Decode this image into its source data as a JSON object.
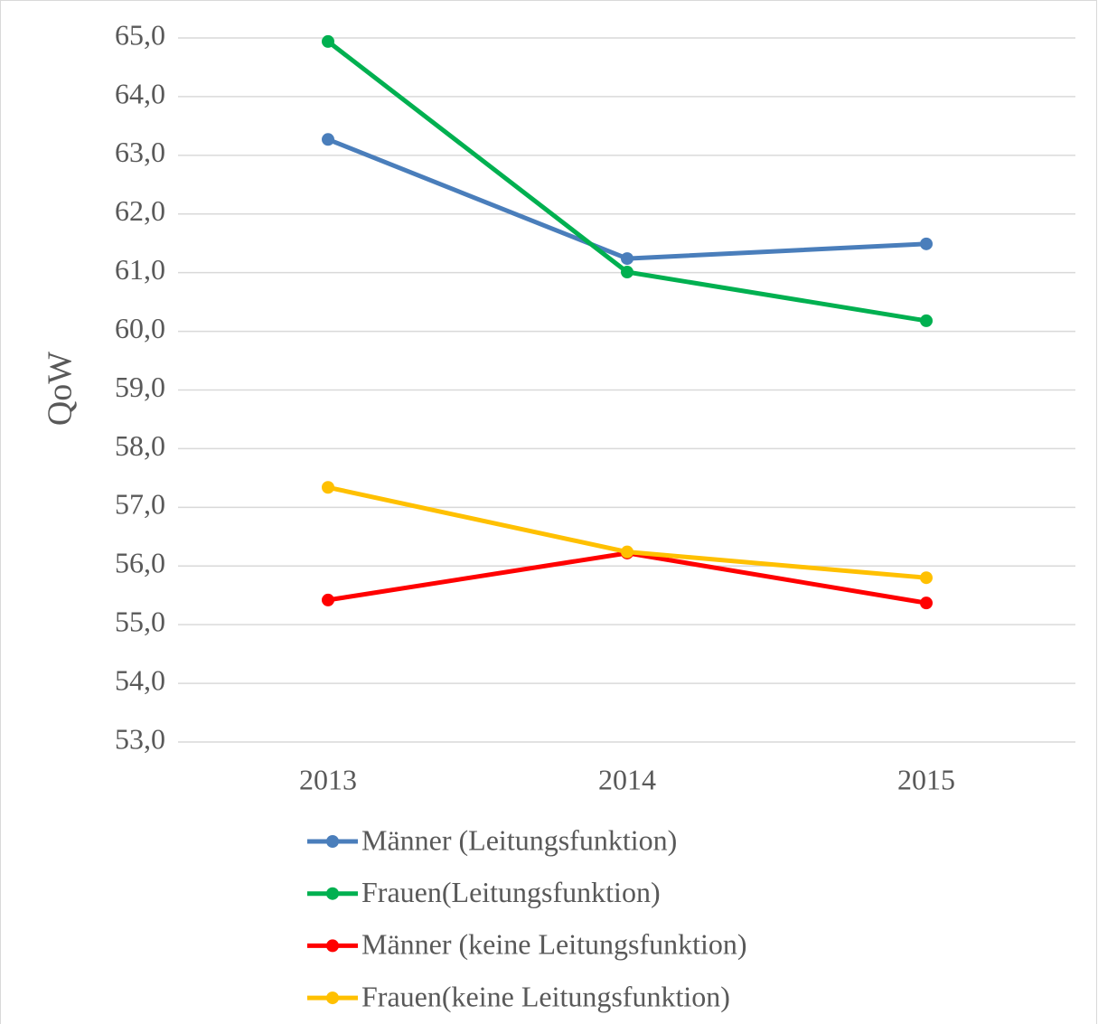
{
  "chart_data": {
    "type": "line",
    "y_label": "QoW",
    "categories": [
      "2013",
      "2014",
      "2015"
    ],
    "series": [
      {
        "name": "Männer (Leitungsfunktion)",
        "color": "#4a7ebb",
        "values": [
          63.27,
          61.24,
          61.49
        ]
      },
      {
        "name": "Frauen(Leitungsfunktion)",
        "color": "#00b050",
        "values": [
          64.94,
          61.01,
          60.18
        ]
      },
      {
        "name": "Männer (keine Leitungsfunktion)",
        "color": "#ff0000",
        "values": [
          55.42,
          56.22,
          55.37
        ]
      },
      {
        "name": "Frauen(keine Leitungsfunktion)",
        "color": "#ffc000",
        "values": [
          57.34,
          56.24,
          55.8
        ]
      }
    ],
    "ylim": [
      53,
      65
    ],
    "yticks": [
      {
        "value": 53,
        "label": "53,0"
      },
      {
        "value": 54,
        "label": "54,0"
      },
      {
        "value": 55,
        "label": "55,0"
      },
      {
        "value": 56,
        "label": "56,0"
      },
      {
        "value": 57,
        "label": "57,0"
      },
      {
        "value": 58,
        "label": "58,0"
      },
      {
        "value": 59,
        "label": "59,0"
      },
      {
        "value": 60,
        "label": "60,0"
      },
      {
        "value": 61,
        "label": "61,0"
      },
      {
        "value": 62,
        "label": "62,0"
      },
      {
        "value": 63,
        "label": "63,0"
      },
      {
        "value": 64,
        "label": "64,0"
      },
      {
        "value": 65,
        "label": "65,0"
      }
    ],
    "grid": true,
    "legend": "bottom"
  }
}
